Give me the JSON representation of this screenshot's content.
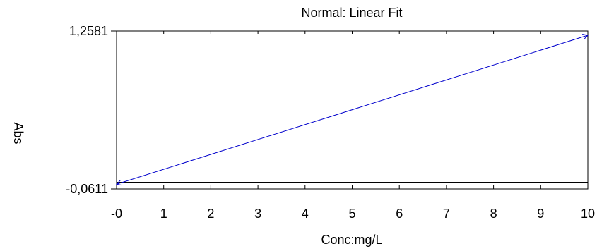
{
  "chart_data": {
    "type": "line",
    "title": "Normal: Linear Fit",
    "xlabel": "Conc:mg/L",
    "ylabel": "Abs",
    "xlim": [
      0,
      10
    ],
    "ylim": [
      -0.0611,
      1.2581
    ],
    "x_tick_labels": [
      "-0",
      "1",
      "2",
      "3",
      "4",
      "5",
      "6",
      "7",
      "8",
      "9",
      "10"
    ],
    "x_ticks": [
      0,
      1,
      2,
      3,
      4,
      5,
      6,
      7,
      8,
      9,
      10
    ],
    "y_tick_labels": [
      "1,2581",
      "-0,0611"
    ],
    "y_ticks": [
      1.2581,
      -0.0611
    ],
    "grid": false,
    "baseline_y": -0.0048,
    "series": [
      {
        "x": [
          0,
          10
        ],
        "y": [
          -0.0214,
          1.2227
        ],
        "color": "#0000cc",
        "endpoints": "arrow"
      }
    ]
  }
}
